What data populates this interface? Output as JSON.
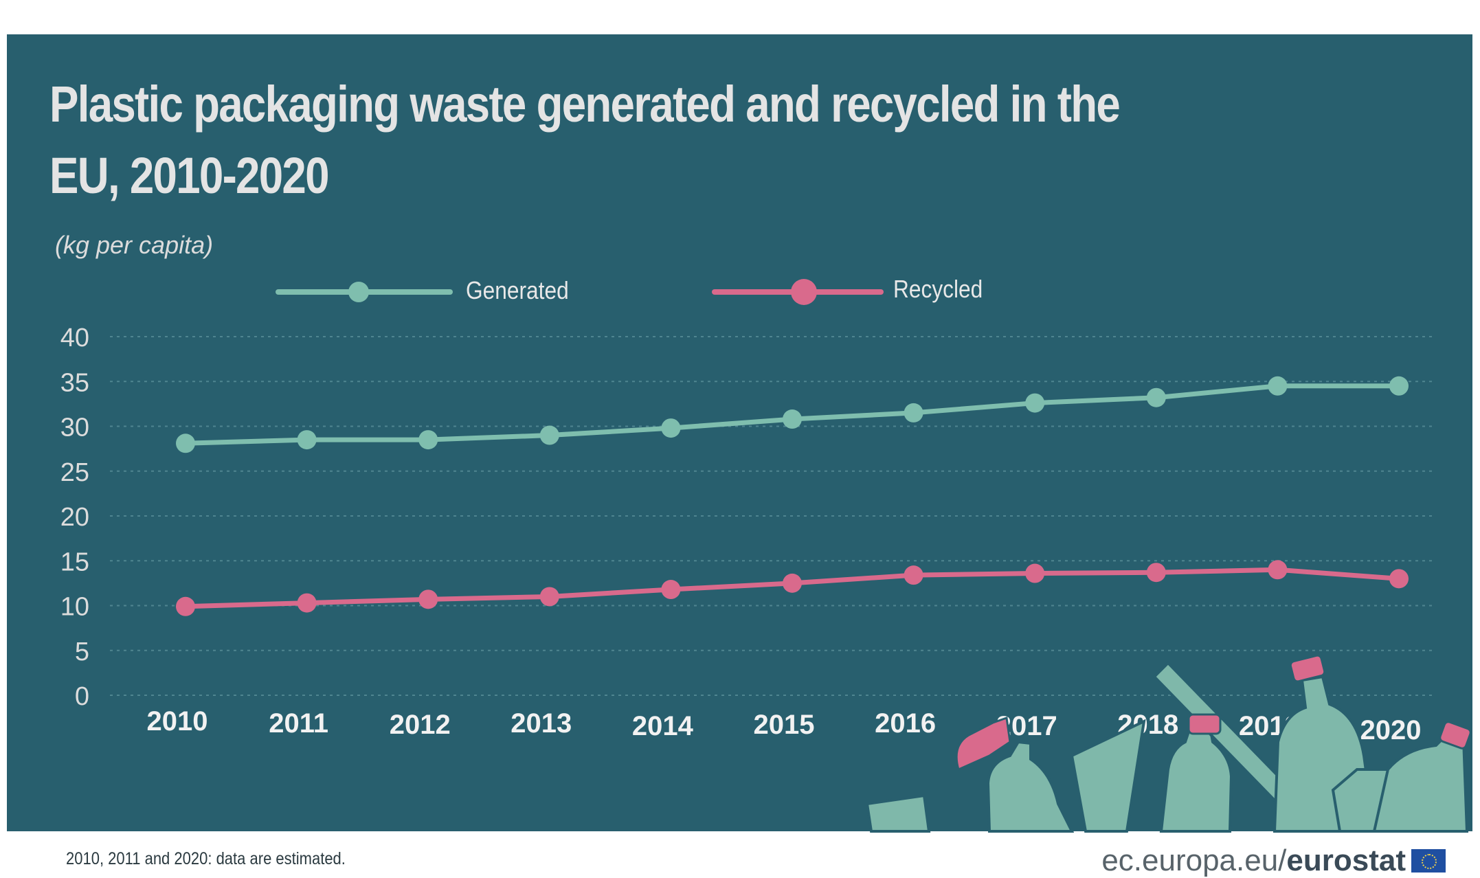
{
  "chart_data": {
    "type": "line",
    "title": "Plastic packaging waste generated and recycled in the EU, 2010-2020",
    "subtitle": "(kg per capita)",
    "x": [
      "2010",
      "2011",
      "2012",
      "2013",
      "2014",
      "2015",
      "2016",
      "2017",
      "2018",
      "2019",
      "2020"
    ],
    "series": [
      {
        "name": "Generated",
        "color": "#7fbeae",
        "values": [
          28.1,
          28.5,
          28.5,
          29.0,
          29.8,
          30.8,
          31.5,
          32.6,
          33.2,
          34.5,
          34.5
        ]
      },
      {
        "name": "Recycled",
        "color": "#d96a8c",
        "values": [
          9.9,
          10.3,
          10.7,
          11.0,
          11.8,
          12.5,
          13.4,
          13.6,
          13.7,
          14.0,
          13.0
        ]
      }
    ],
    "yticks": [
      0,
      5,
      10,
      15,
      20,
      25,
      30,
      35,
      40
    ],
    "ylim": [
      0,
      40
    ],
    "grid": true,
    "legend": "top"
  },
  "footnote": "2010, 2011 and 2020: data are estimated.",
  "source": {
    "domain": "ec.europa.eu/",
    "brand": "eurostat"
  },
  "colors": {
    "background": "#285f6e",
    "generated": "#7fbeae",
    "recycled": "#d96a8c",
    "text": "#e4e4e4"
  }
}
